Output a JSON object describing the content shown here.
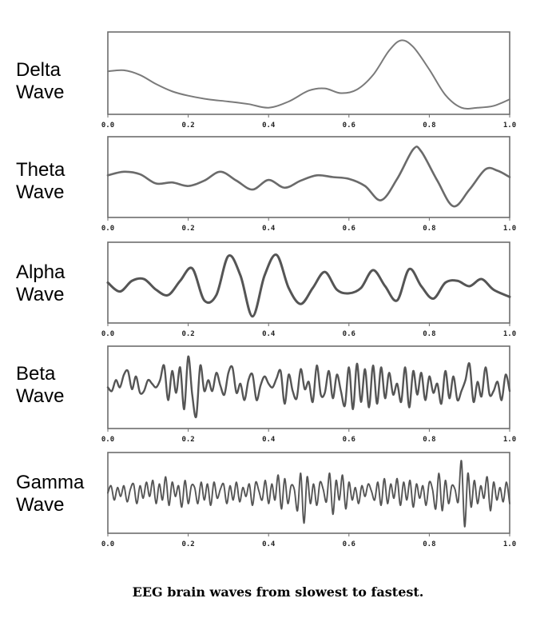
{
  "caption": "EEG brain waves from slowest to fastest.",
  "chart_data": [
    {
      "type": "line",
      "label_line1": "Delta",
      "label_line2": "Wave",
      "xlim": [
        0,
        1
      ],
      "xticks": [
        "0.0",
        "0.2",
        "0.4",
        "0.6",
        "0.8",
        "1.0"
      ],
      "ylim": [
        -1,
        1
      ],
      "color": "#7a7a7a",
      "series": [
        {
          "x": [
            0,
            0.04,
            0.08,
            0.12,
            0.16,
            0.2,
            0.25,
            0.3,
            0.35,
            0.4,
            0.45,
            0.5,
            0.54,
            0.58,
            0.62,
            0.66,
            0.7,
            0.73,
            0.76,
            0.8,
            0.84,
            0.88,
            0.92,
            0.96,
            1.0
          ],
          "values": [
            0.05,
            0.08,
            -0.05,
            -0.3,
            -0.5,
            -0.62,
            -0.72,
            -0.78,
            -0.85,
            -0.95,
            -0.78,
            -0.48,
            -0.42,
            -0.55,
            -0.45,
            -0.05,
            0.62,
            0.9,
            0.72,
            0.1,
            -0.6,
            -0.95,
            -0.95,
            -0.9,
            -0.72
          ]
        }
      ]
    },
    {
      "type": "line",
      "label_line1": "Theta",
      "label_line2": "Wave",
      "xlim": [
        0,
        1
      ],
      "xticks": [
        "0.0",
        "0.2",
        "0.4",
        "0.6",
        "0.8",
        "1.0"
      ],
      "ylim": [
        -1,
        1
      ],
      "color": "#6a6a6a",
      "series": [
        {
          "x": [
            0,
            0.04,
            0.08,
            0.12,
            0.16,
            0.2,
            0.24,
            0.28,
            0.32,
            0.36,
            0.4,
            0.44,
            0.48,
            0.52,
            0.56,
            0.6,
            0.64,
            0.68,
            0.72,
            0.76,
            0.78,
            0.82,
            0.86,
            0.9,
            0.94,
            0.97,
            1.0
          ],
          "values": [
            0.05,
            0.15,
            0.08,
            -0.18,
            -0.15,
            -0.25,
            -0.1,
            0.15,
            -0.1,
            -0.35,
            -0.08,
            -0.3,
            -0.1,
            0.05,
            0.0,
            -0.05,
            -0.25,
            -0.65,
            -0.05,
            0.78,
            0.72,
            -0.1,
            -0.82,
            -0.35,
            0.22,
            0.18,
            0.0
          ]
        }
      ]
    },
    {
      "type": "line",
      "label_line1": "Alpha",
      "label_line2": "Wave",
      "xlim": [
        0,
        1
      ],
      "xticks": [
        "0.0",
        "0.2",
        "0.4",
        "0.6",
        "0.8",
        "1.0"
      ],
      "ylim": [
        -1,
        1
      ],
      "color": "#555555",
      "series": [
        {
          "x": [
            0,
            0.03,
            0.06,
            0.09,
            0.12,
            0.15,
            0.18,
            0.21,
            0.24,
            0.27,
            0.3,
            0.33,
            0.36,
            0.39,
            0.42,
            0.45,
            0.48,
            0.51,
            0.54,
            0.57,
            0.6,
            0.63,
            0.66,
            0.69,
            0.72,
            0.75,
            0.78,
            0.81,
            0.84,
            0.87,
            0.9,
            0.93,
            0.96,
            1.0
          ],
          "values": [
            0.0,
            -0.25,
            0.05,
            0.1,
            -0.2,
            -0.35,
            0.05,
            0.4,
            -0.5,
            -0.35,
            0.75,
            0.2,
            -0.95,
            0.2,
            0.78,
            -0.15,
            -0.6,
            -0.15,
            0.3,
            -0.2,
            -0.3,
            -0.15,
            0.35,
            -0.1,
            -0.5,
            0.38,
            -0.1,
            -0.45,
            0.0,
            0.05,
            -0.1,
            0.1,
            -0.2,
            -0.4
          ]
        }
      ]
    },
    {
      "type": "line",
      "label_line1": "Beta",
      "label_line2": "Wave",
      "xlim": [
        0,
        1
      ],
      "xticks": [
        "0.0",
        "0.2",
        "0.4",
        "0.6",
        "0.8",
        "1.0"
      ],
      "ylim": [
        -1,
        1
      ],
      "color": "#555555",
      "series": [
        {
          "x": [
            0,
            0.01,
            0.02,
            0.03,
            0.04,
            0.05,
            0.06,
            0.07,
            0.08,
            0.09,
            0.1,
            0.11,
            0.12,
            0.13,
            0.14,
            0.15,
            0.16,
            0.17,
            0.18,
            0.19,
            0.2,
            0.21,
            0.22,
            0.23,
            0.24,
            0.25,
            0.26,
            0.27,
            0.28,
            0.29,
            0.3,
            0.31,
            0.32,
            0.33,
            0.34,
            0.35,
            0.36,
            0.37,
            0.38,
            0.39,
            0.4,
            0.41,
            0.42,
            0.43,
            0.44,
            0.45,
            0.46,
            0.47,
            0.48,
            0.49,
            0.5,
            0.51,
            0.52,
            0.53,
            0.54,
            0.55,
            0.56,
            0.57,
            0.58,
            0.59,
            0.6,
            0.61,
            0.62,
            0.63,
            0.64,
            0.65,
            0.66,
            0.67,
            0.68,
            0.69,
            0.7,
            0.71,
            0.72,
            0.73,
            0.74,
            0.75,
            0.76,
            0.77,
            0.78,
            0.79,
            0.8,
            0.81,
            0.82,
            0.83,
            0.84,
            0.85,
            0.86,
            0.87,
            0.88,
            0.89,
            0.9,
            0.91,
            0.92,
            0.93,
            0.94,
            0.95,
            0.96,
            0.97,
            0.98,
            0.99,
            1.0
          ],
          "values": [
            0.0,
            -0.1,
            0.2,
            0.0,
            0.35,
            0.45,
            -0.05,
            0.3,
            -0.15,
            -0.1,
            0.2,
            0.1,
            0.0,
            0.2,
            0.6,
            -0.35,
            0.45,
            -0.15,
            0.55,
            -0.6,
            0.85,
            -0.2,
            -0.8,
            0.6,
            -0.1,
            0.2,
            -0.1,
            0.4,
            0.05,
            -0.2,
            0.4,
            0.55,
            -0.15,
            0.1,
            -0.35,
            0.2,
            0.35,
            -0.35,
            0.05,
            0.3,
            0.1,
            0.0,
            0.25,
            0.45,
            -0.45,
            0.35,
            -0.1,
            -0.3,
            0.5,
            -0.05,
            0.15,
            -0.4,
            0.6,
            -0.2,
            -0.15,
            0.45,
            -0.3,
            0.35,
            -0.1,
            -0.5,
            0.55,
            -0.6,
            0.65,
            -0.4,
            0.5,
            -0.55,
            0.6,
            -0.45,
            0.55,
            -0.3,
            0.4,
            -0.2,
            0.1,
            -0.4,
            0.55,
            -0.55,
            0.45,
            -0.2,
            0.4,
            -0.35,
            0.3,
            -0.15,
            0.1,
            -0.45,
            0.45,
            -0.3,
            0.3,
            -0.35,
            -0.1,
            0.2,
            0.65,
            -0.4,
            0.15,
            -0.25,
            0.55,
            -0.2,
            -0.1,
            0.15,
            -0.35,
            0.35,
            -0.1
          ]
        }
      ]
    },
    {
      "type": "line",
      "label_line1": "Gamma",
      "label_line2": "Wave",
      "xlim": [
        0,
        1
      ],
      "xticks": [
        "0.0",
        "0.2",
        "0.4",
        "0.6",
        "0.8",
        "1.0"
      ],
      "ylim": [
        -1,
        1
      ],
      "color": "#555555",
      "series": [
        {
          "x": [
            0,
            0.008,
            0.016,
            0.024,
            0.032,
            0.04,
            0.048,
            0.056,
            0.064,
            0.072,
            0.08,
            0.088,
            0.096,
            0.104,
            0.112,
            0.12,
            0.128,
            0.136,
            0.144,
            0.152,
            0.16,
            0.168,
            0.176,
            0.184,
            0.192,
            0.2,
            0.208,
            0.216,
            0.224,
            0.232,
            0.24,
            0.248,
            0.256,
            0.264,
            0.272,
            0.28,
            0.288,
            0.296,
            0.304,
            0.312,
            0.32,
            0.328,
            0.336,
            0.344,
            0.352,
            0.36,
            0.368,
            0.376,
            0.384,
            0.392,
            0.4,
            0.408,
            0.416,
            0.424,
            0.432,
            0.44,
            0.448,
            0.456,
            0.464,
            0.472,
            0.48,
            0.488,
            0.496,
            0.504,
            0.512,
            0.52,
            0.528,
            0.536,
            0.544,
            0.552,
            0.56,
            0.568,
            0.576,
            0.584,
            0.592,
            0.6,
            0.608,
            0.616,
            0.624,
            0.632,
            0.64,
            0.648,
            0.656,
            0.664,
            0.672,
            0.68,
            0.688,
            0.696,
            0.704,
            0.712,
            0.72,
            0.728,
            0.736,
            0.744,
            0.752,
            0.76,
            0.768,
            0.776,
            0.784,
            0.792,
            0.8,
            0.808,
            0.816,
            0.824,
            0.832,
            0.84,
            0.848,
            0.856,
            0.864,
            0.872,
            0.88,
            0.888,
            0.896,
            0.904,
            0.912,
            0.92,
            0.928,
            0.936,
            0.944,
            0.952,
            0.96,
            0.968,
            0.976,
            0.984,
            0.992,
            1.0
          ],
          "values": [
            0.0,
            0.2,
            -0.2,
            0.15,
            -0.1,
            0.2,
            -0.25,
            0.1,
            0.25,
            -0.3,
            0.2,
            -0.15,
            0.3,
            -0.1,
            0.35,
            -0.3,
            0.25,
            -0.2,
            0.45,
            -0.35,
            0.3,
            -0.1,
            0.2,
            -0.4,
            0.35,
            -0.3,
            0.2,
            0.15,
            -0.3,
            0.3,
            -0.2,
            0.25,
            -0.35,
            0.3,
            -0.15,
            0.1,
            0.25,
            -0.3,
            0.2,
            -0.2,
            0.3,
            -0.25,
            0.15,
            -0.1,
            0.25,
            -0.35,
            0.3,
            0.05,
            -0.2,
            0.35,
            -0.3,
            0.25,
            -0.2,
            0.5,
            -0.45,
            0.4,
            -0.3,
            0.2,
            0.1,
            -0.5,
            0.55,
            -0.85,
            0.45,
            -0.3,
            0.25,
            -0.35,
            0.3,
            0.1,
            -0.25,
            0.55,
            -0.6,
            0.35,
            -0.2,
            0.5,
            -0.45,
            0.3,
            -0.2,
            0.15,
            -0.3,
            0.2,
            -0.1,
            0.25,
            0.05,
            -0.2,
            0.3,
            -0.35,
            0.4,
            -0.3,
            0.25,
            -0.15,
            0.4,
            -0.35,
            0.3,
            -0.2,
            0.35,
            -0.4,
            0.25,
            -0.15,
            0.2,
            -0.35,
            0.3,
            0.1,
            -0.45,
            0.55,
            -0.5,
            0.35,
            -0.3,
            0.2,
            0.1,
            -0.25,
            0.9,
            -0.95,
            0.55,
            -0.4,
            0.35,
            -0.3,
            0.2,
            -0.15,
            0.45,
            -0.5,
            0.3,
            -0.2,
            0.15,
            -0.25,
            0.3,
            -0.3
          ]
        }
      ]
    }
  ]
}
